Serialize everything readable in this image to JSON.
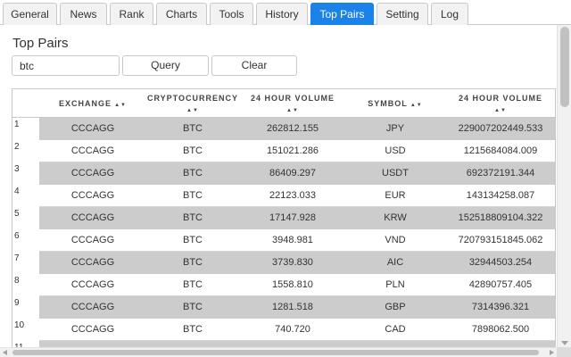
{
  "tabs": [
    {
      "label": "General",
      "active": false
    },
    {
      "label": "News",
      "active": false
    },
    {
      "label": "Rank",
      "active": false
    },
    {
      "label": "Charts",
      "active": false
    },
    {
      "label": "Tools",
      "active": false
    },
    {
      "label": "History",
      "active": false
    },
    {
      "label": "Top Pairs",
      "active": true
    },
    {
      "label": "Setting",
      "active": false
    },
    {
      "label": "Log",
      "active": false
    }
  ],
  "page_title": "Top Pairs",
  "search": {
    "value": "btc"
  },
  "buttons": {
    "query": "Query",
    "clear": "Clear"
  },
  "sort_icon": "▲▼",
  "columns": [
    "EXCHANGE",
    "CRYPTOCURRENCY",
    "24 HOUR VOLUME",
    "SYMBOL",
    "24 HOUR VOLUME"
  ],
  "rows": [
    {
      "num": "1",
      "cells": [
        "CCCAGG",
        "BTC",
        "262812.155",
        "JPY",
        "229007202449.533"
      ]
    },
    {
      "num": "2",
      "cells": [
        "CCCAGG",
        "BTC",
        "151021.286",
        "USD",
        "1215684084.009"
      ]
    },
    {
      "num": "3",
      "cells": [
        "CCCAGG",
        "BTC",
        "86409.297",
        "USDT",
        "692372191.344"
      ]
    },
    {
      "num": "4",
      "cells": [
        "CCCAGG",
        "BTC",
        "22123.033",
        "EUR",
        "143134258.087"
      ]
    },
    {
      "num": "5",
      "cells": [
        "CCCAGG",
        "BTC",
        "17147.928",
        "KRW",
        "152518809104.322"
      ]
    },
    {
      "num": "6",
      "cells": [
        "CCCAGG",
        "BTC",
        "3948.981",
        "VND",
        "720793151845.062"
      ]
    },
    {
      "num": "7",
      "cells": [
        "CCCAGG",
        "BTC",
        "3739.830",
        "AIC",
        "32944503.254"
      ]
    },
    {
      "num": "8",
      "cells": [
        "CCCAGG",
        "BTC",
        "1558.810",
        "PLN",
        "42890757.405"
      ]
    },
    {
      "num": "9",
      "cells": [
        "CCCAGG",
        "BTC",
        "1281.518",
        "GBP",
        "7314396.321"
      ]
    },
    {
      "num": "10",
      "cells": [
        "CCCAGG",
        "BTC",
        "740.720",
        "CAD",
        "7898062.500"
      ]
    },
    {
      "num": "11",
      "cells": [
        "",
        "",
        "",
        "",
        ""
      ]
    }
  ],
  "colors": {
    "active_tab": "#1a82e8",
    "row_shade": "#cccccc"
  }
}
